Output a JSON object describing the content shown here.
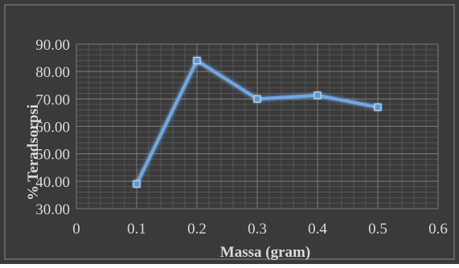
{
  "colors": {
    "background": "#3a3a3a",
    "plot_area": "#3a3a3a",
    "major_grid": "#7a7a7a",
    "minor_grid": "#555555",
    "series_line": "#5b9bd5",
    "series_glow": "#6fa8e0",
    "tick_text": "#d9d9d9",
    "axis_title_text": "#d9d9d9",
    "frame": "#8a8a8a"
  },
  "chart_data": {
    "type": "line",
    "title": "",
    "xlabel": "Massa (gram)",
    "ylabel": "% Teradsorpsi",
    "xlim": [
      0,
      0.6
    ],
    "ylim": [
      30,
      90
    ],
    "x_ticks": [
      0,
      0.1,
      0.2,
      0.3,
      0.4,
      0.5,
      0.6
    ],
    "x_tick_labels": [
      "0",
      "0.1",
      "0.2",
      "0.3",
      "0.4",
      "0.5",
      "0.6"
    ],
    "y_ticks": [
      30,
      40,
      50,
      60,
      70,
      80,
      90
    ],
    "y_tick_labels": [
      "30.00",
      "40.00",
      "50.00",
      "60.00",
      "70.00",
      "80.00",
      "90.00"
    ],
    "grid": true,
    "minor_grid": true,
    "legend": "none",
    "series": [
      {
        "x": [
          0.1,
          0.2,
          0.3,
          0.4,
          0.5
        ],
        "values": [
          39,
          84,
          70,
          71.3,
          67
        ]
      }
    ]
  }
}
